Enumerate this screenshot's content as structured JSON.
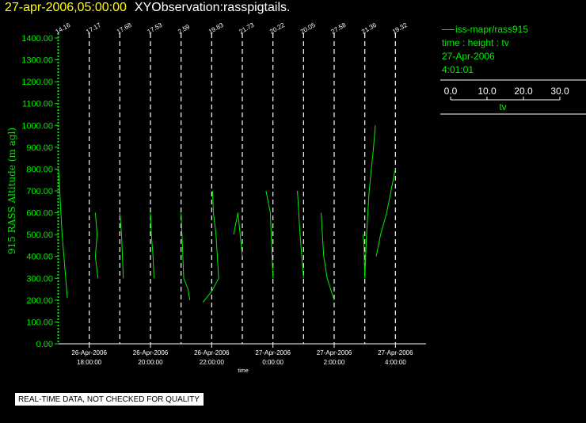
{
  "header": {
    "datetime": "27-apr-2006,05:00:00",
    "name": "XYObservation:rasspigtails."
  },
  "legend": {
    "series": "iss-mapr/rass915",
    "line2": "time : height : tv",
    "date": "27-Apr-2006",
    "time": "4:01:01",
    "scale_ticks": [
      "0.0",
      "10.0",
      "20.0",
      "30.0"
    ],
    "scale_label": "tv"
  },
  "footer": "REAL-TIME DATA, NOT CHECKED FOR QUALITY",
  "colors": {
    "series": "#00ee00",
    "accent": "#ffff00",
    "axes": "#ffffff",
    "background": "#000000"
  },
  "chart_data": {
    "type": "line",
    "ylabel": "915 RASS Altitude (m agl)",
    "xlabel": "time",
    "ylim": [
      0,
      1400
    ],
    "yticks": [
      "0.00",
      "100.00",
      "200.00",
      "300.00",
      "400.00",
      "500.00",
      "600.00",
      "700.00",
      "800.00",
      "900.00",
      "1000.00",
      "1100.00",
      "1200.00",
      "1300.00",
      "1400.00"
    ],
    "xlim": [
      "2006-04-26 17:00",
      "2006-04-27 05:00"
    ],
    "xticks": [
      {
        "t": "2006-04-26 18:00",
        "date": "26-Apr-2006",
        "time": "18:00:00"
      },
      {
        "t": "2006-04-26 20:00",
        "date": "26-Apr-2006",
        "time": "20:00:00"
      },
      {
        "t": "2006-04-26 22:00",
        "date": "26-Apr-2006",
        "time": "22:00:00"
      },
      {
        "t": "2006-04-27 00:00",
        "date": "27-Apr-2006",
        "time": "0:00:00"
      },
      {
        "t": "2006-04-27 02:00",
        "date": "27-Apr-2006",
        "time": "2:00:00"
      },
      {
        "t": "2006-04-27 04:00",
        "date": "27-Apr-2006",
        "time": "4:00:00"
      }
    ],
    "profiles": [
      {
        "time": "2006-04-26 17:00",
        "base_tv": "14.16",
        "tv": [
          [
            0,
            800
          ],
          [
            4,
            500
          ],
          [
            10,
            210
          ]
        ]
      },
      {
        "time": "2006-04-26 18:00",
        "base_tv": "17.17",
        "tv": [
          [
            7,
            600
          ],
          [
            9,
            500
          ],
          [
            7,
            400
          ],
          [
            10,
            300
          ]
        ]
      },
      {
        "time": "2006-04-26 19:00",
        "base_tv": "17.68",
        "tv": [
          [
            0,
            600
          ],
          [
            2,
            500
          ],
          [
            3,
            400
          ],
          [
            4,
            300
          ]
        ]
      },
      {
        "time": "2006-04-26 20:00",
        "base_tv": "17.53",
        "tv": [
          [
            0,
            600
          ],
          [
            1,
            500
          ],
          [
            3,
            400
          ],
          [
            4,
            300
          ]
        ]
      },
      {
        "time": "2006-04-26 21:00",
        "base_tv": "2.59",
        "tv": [
          [
            0,
            600
          ],
          [
            1,
            500
          ],
          [
            2,
            400
          ],
          [
            3,
            300
          ],
          [
            8,
            250
          ],
          [
            10,
            200
          ]
        ]
      },
      {
        "time": "2006-04-26 22:00",
        "base_tv": "19.83",
        "tv": [
          [
            -10,
            190
          ],
          [
            0,
            240
          ],
          [
            8,
            300
          ],
          [
            5,
            500
          ],
          [
            2,
            600
          ],
          [
            1,
            700
          ]
        ]
      },
      {
        "time": "2006-04-26 23:00",
        "base_tv": "21.73",
        "tv": [
          [
            -10,
            500
          ],
          [
            -5,
            600
          ],
          [
            0,
            400
          ]
        ]
      },
      {
        "time": "2006-04-27 00:00",
        "base_tv": "20.22",
        "tv": [
          [
            -8,
            700
          ],
          [
            -3,
            600
          ],
          [
            -2,
            500
          ],
          [
            0,
            300
          ]
        ]
      },
      {
        "time": "2006-04-27 01:00",
        "base_tv": "20.05",
        "tv": [
          [
            -7,
            700
          ],
          [
            -4,
            500
          ],
          [
            0,
            300
          ]
        ]
      },
      {
        "time": "2006-04-27 02:00",
        "base_tv": "27.58",
        "tv": [
          [
            -15,
            600
          ],
          [
            -12,
            400
          ],
          [
            -8,
            300
          ],
          [
            0,
            200
          ]
        ]
      },
      {
        "time": "2006-04-27 03:00",
        "base_tv": "21.36",
        "tv": [
          [
            -2,
            500
          ],
          [
            -1,
            450
          ],
          [
            0,
            300
          ],
          [
            2,
            500
          ],
          [
            5,
            700
          ],
          [
            10,
            900
          ],
          [
            12,
            1000
          ]
        ]
      },
      {
        "time": "2006-04-27 04:00",
        "base_tv": "19.32",
        "tv": [
          [
            -22,
            400
          ],
          [
            -17,
            500
          ],
          [
            -10,
            600
          ],
          [
            -5,
            700
          ],
          [
            0,
            800
          ]
        ]
      }
    ]
  }
}
